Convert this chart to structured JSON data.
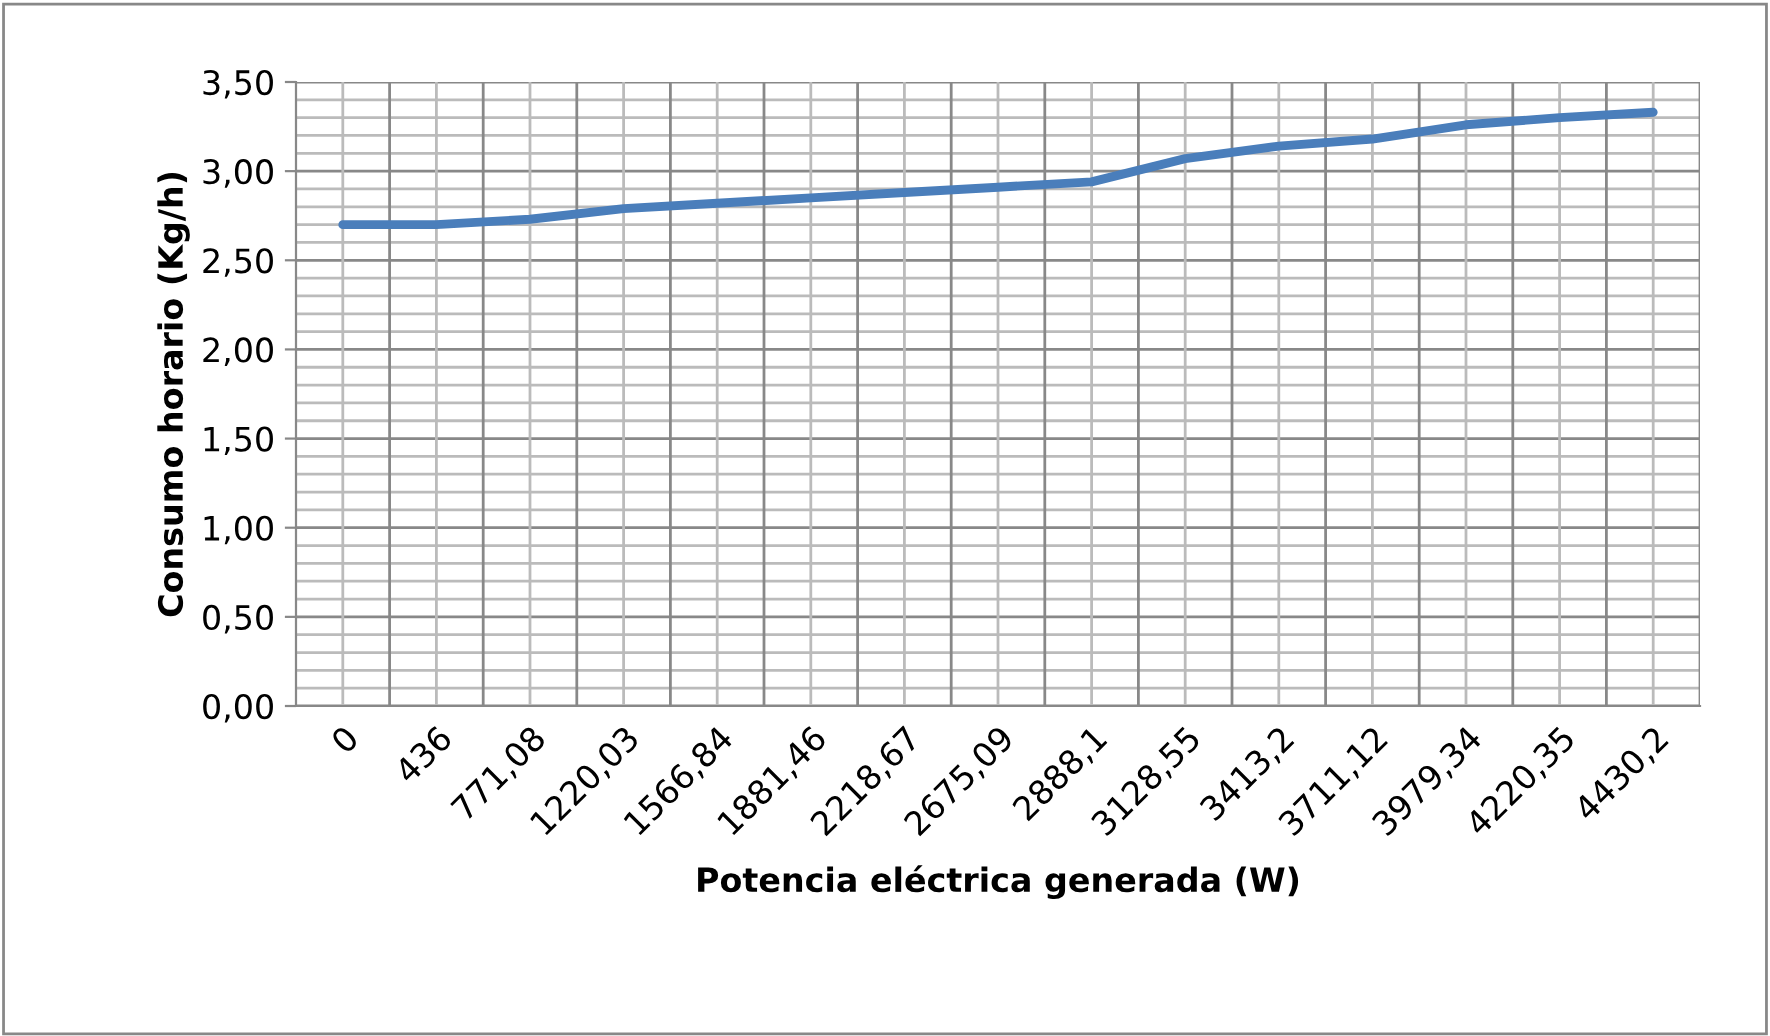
{
  "chart_data": {
    "type": "line",
    "xlabel": "Potencia eléctrica generada (W)",
    "ylabel": "Consumo horario (Kg/h)",
    "categories": [
      "0",
      "436",
      "771,08",
      "1220,03",
      "1566,84",
      "1881,46",
      "2218,67",
      "2675,09",
      "2888,1",
      "3128,55",
      "3413,2",
      "3711,12",
      "3979,34",
      "4220,35",
      "4430,2"
    ],
    "series": [
      {
        "color": "#4a7ebb",
        "values": [
          2.7,
          2.7,
          2.73,
          2.79,
          2.82,
          2.85,
          2.88,
          2.91,
          2.94,
          3.07,
          3.14,
          3.18,
          3.26,
          3.3,
          3.33
        ]
      }
    ],
    "ylim": [
      0,
      3.5
    ],
    "yticks": [
      {
        "value": 0,
        "label": "0,00"
      },
      {
        "value": 0.5,
        "label": "0,50"
      },
      {
        "value": 1,
        "label": "1,00"
      },
      {
        "value": 1.5,
        "label": "1,50"
      },
      {
        "value": 2,
        "label": "2,00"
      },
      {
        "value": 2.5,
        "label": "2,50"
      },
      {
        "value": 3,
        "label": "3,00"
      },
      {
        "value": 3.5,
        "label": "3,50"
      }
    ],
    "grid": true,
    "marker": "none",
    "line_style": "solid",
    "legend": false
  }
}
